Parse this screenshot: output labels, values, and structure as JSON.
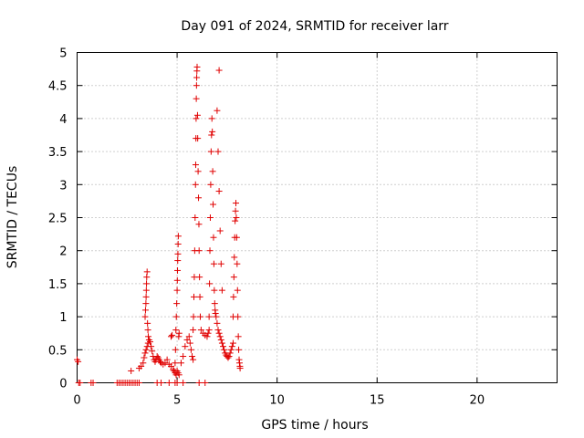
{
  "chart_data": {
    "type": "scatter",
    "title": "Day 091 of 2024, SRMTID for receiver larr",
    "xlabel": "GPS time / hours",
    "ylabel": "SRMTID / TECUs",
    "xlim": [
      0,
      24
    ],
    "ylim": [
      0,
      5
    ],
    "xticks": [
      0,
      5,
      10,
      15,
      20
    ],
    "xtick_labels": [
      "0",
      "5",
      "10",
      "15",
      "20"
    ],
    "yticks": [
      0,
      0.5,
      1,
      1.5,
      2,
      2.5,
      3,
      3.5,
      4,
      4.5,
      5
    ],
    "ytick_labels": [
      "0",
      "0.5",
      "1",
      "1.5",
      "2",
      "2.5",
      "3",
      "3.5",
      "4",
      "4.5",
      "5"
    ],
    "grid": true,
    "marker": "+",
    "color": "#e00000",
    "series": [
      {
        "name": "SRMTID",
        "points": [
          [
            0.0,
            0.35
          ],
          [
            0.05,
            0.32
          ],
          [
            0.08,
            0.0
          ],
          [
            0.15,
            0.0
          ],
          [
            0.7,
            0.0
          ],
          [
            0.8,
            0.0
          ],
          [
            2.0,
            0.0
          ],
          [
            2.1,
            0.0
          ],
          [
            2.2,
            0.0
          ],
          [
            2.3,
            0.0
          ],
          [
            2.4,
            0.0
          ],
          [
            2.5,
            0.0
          ],
          [
            2.6,
            0.0
          ],
          [
            2.7,
            0.0
          ],
          [
            2.8,
            0.0
          ],
          [
            2.9,
            0.0
          ],
          [
            3.0,
            0.0
          ],
          [
            3.1,
            0.0
          ],
          [
            4.0,
            0.0
          ],
          [
            4.2,
            0.0
          ],
          [
            4.6,
            0.0
          ],
          [
            4.9,
            0.0
          ],
          [
            5.0,
            0.0
          ],
          [
            5.3,
            0.0
          ],
          [
            6.1,
            0.0
          ],
          [
            6.4,
            0.0
          ],
          [
            2.7,
            0.18
          ],
          [
            3.1,
            0.22
          ],
          [
            3.2,
            0.25
          ],
          [
            3.3,
            0.3
          ],
          [
            3.35,
            0.38
          ],
          [
            3.4,
            0.45
          ],
          [
            3.45,
            0.5
          ],
          [
            3.5,
            0.55
          ],
          [
            3.55,
            0.6
          ],
          [
            3.6,
            0.65
          ],
          [
            3.65,
            0.62
          ],
          [
            3.7,
            0.55
          ],
          [
            3.75,
            0.48
          ],
          [
            3.8,
            0.4
          ],
          [
            3.85,
            0.35
          ],
          [
            3.9,
            0.32
          ],
          [
            3.95,
            0.35
          ],
          [
            4.0,
            0.4
          ],
          [
            4.05,
            0.38
          ],
          [
            4.1,
            0.35
          ],
          [
            4.15,
            0.32
          ],
          [
            4.2,
            0.3
          ],
          [
            4.3,
            0.28
          ],
          [
            4.4,
            0.3
          ],
          [
            4.5,
            0.35
          ],
          [
            4.6,
            0.28
          ],
          [
            4.7,
            0.25
          ],
          [
            4.8,
            0.2
          ],
          [
            4.85,
            0.18
          ],
          [
            4.9,
            0.15
          ],
          [
            4.95,
            0.12
          ],
          [
            5.0,
            0.18
          ],
          [
            5.05,
            0.15
          ],
          [
            5.1,
            0.12
          ],
          [
            3.4,
            1.0
          ],
          [
            3.42,
            1.1
          ],
          [
            3.44,
            1.2
          ],
          [
            3.45,
            1.3
          ],
          [
            3.46,
            1.4
          ],
          [
            3.47,
            1.5
          ],
          [
            3.48,
            1.6
          ],
          [
            3.5,
            1.68
          ],
          [
            3.52,
            0.9
          ],
          [
            3.54,
            0.8
          ],
          [
            3.56,
            0.7
          ],
          [
            4.7,
            0.7
          ],
          [
            4.75,
            0.72
          ],
          [
            4.9,
            0.3
          ],
          [
            4.92,
            0.5
          ],
          [
            4.94,
            0.8
          ],
          [
            4.96,
            1.0
          ],
          [
            4.98,
            1.2
          ],
          [
            5.0,
            1.4
          ],
          [
            5.01,
            1.55
          ],
          [
            5.02,
            1.7
          ],
          [
            5.03,
            1.85
          ],
          [
            5.04,
            1.95
          ],
          [
            5.05,
            2.1
          ],
          [
            5.06,
            2.22
          ],
          [
            5.08,
            0.7
          ],
          [
            5.1,
            0.75
          ],
          [
            5.2,
            0.3
          ],
          [
            5.3,
            0.4
          ],
          [
            5.4,
            0.55
          ],
          [
            5.5,
            0.65
          ],
          [
            5.6,
            0.7
          ],
          [
            5.65,
            0.6
          ],
          [
            5.7,
            0.5
          ],
          [
            5.75,
            0.4
          ],
          [
            5.8,
            0.35
          ],
          [
            5.8,
            0.8
          ],
          [
            5.82,
            1.0
          ],
          [
            5.84,
            1.3
          ],
          [
            5.86,
            1.6
          ],
          [
            5.88,
            2.0
          ],
          [
            5.9,
            2.5
          ],
          [
            5.92,
            3.0
          ],
          [
            5.93,
            3.3
          ],
          [
            5.94,
            3.7
          ],
          [
            5.95,
            4.0
          ],
          [
            5.96,
            4.3
          ],
          [
            5.97,
            4.5
          ],
          [
            5.98,
            4.62
          ],
          [
            5.99,
            4.72
          ],
          [
            6.0,
            4.78
          ],
          [
            6.02,
            4.05
          ],
          [
            6.03,
            3.7
          ],
          [
            6.05,
            3.2
          ],
          [
            6.07,
            2.8
          ],
          [
            6.09,
            2.4
          ],
          [
            6.1,
            2.0
          ],
          [
            6.12,
            1.6
          ],
          [
            6.14,
            1.3
          ],
          [
            6.16,
            1.0
          ],
          [
            6.2,
            0.8
          ],
          [
            6.3,
            0.75
          ],
          [
            6.4,
            0.72
          ],
          [
            6.5,
            0.7
          ],
          [
            6.55,
            0.75
          ],
          [
            6.6,
            0.8
          ],
          [
            6.6,
            1.0
          ],
          [
            6.62,
            1.5
          ],
          [
            6.64,
            2.0
          ],
          [
            6.66,
            2.5
          ],
          [
            6.68,
            3.0
          ],
          [
            6.7,
            3.5
          ],
          [
            6.72,
            3.75
          ],
          [
            6.74,
            4.0
          ],
          [
            6.76,
            3.8
          ],
          [
            6.78,
            3.2
          ],
          [
            6.8,
            2.7
          ],
          [
            6.82,
            2.2
          ],
          [
            6.84,
            1.8
          ],
          [
            6.86,
            1.4
          ],
          [
            6.88,
            1.2
          ],
          [
            6.9,
            1.1
          ],
          [
            6.92,
            1.05
          ],
          [
            6.95,
            1.0
          ],
          [
            7.0,
            0.9
          ],
          [
            7.05,
            0.8
          ],
          [
            7.1,
            0.75
          ],
          [
            7.15,
            0.7
          ],
          [
            7.2,
            0.65
          ],
          [
            7.25,
            0.6
          ],
          [
            7.0,
            4.12
          ],
          [
            7.05,
            3.5
          ],
          [
            7.1,
            2.9
          ],
          [
            7.15,
            2.3
          ],
          [
            7.2,
            1.8
          ],
          [
            7.25,
            1.4
          ],
          [
            7.1,
            4.73
          ],
          [
            7.3,
            0.55
          ],
          [
            7.35,
            0.5
          ],
          [
            7.4,
            0.45
          ],
          [
            7.45,
            0.42
          ],
          [
            7.5,
            0.4
          ],
          [
            7.55,
            0.38
          ],
          [
            7.6,
            0.4
          ],
          [
            7.65,
            0.45
          ],
          [
            7.7,
            0.5
          ],
          [
            7.75,
            0.55
          ],
          [
            7.8,
            0.6
          ],
          [
            7.8,
            1.0
          ],
          [
            7.82,
            1.3
          ],
          [
            7.84,
            1.6
          ],
          [
            7.86,
            1.9
          ],
          [
            7.88,
            2.2
          ],
          [
            7.9,
            2.45
          ],
          [
            7.92,
            2.6
          ],
          [
            7.94,
            2.72
          ],
          [
            7.96,
            2.5
          ],
          [
            7.98,
            2.2
          ],
          [
            8.0,
            1.8
          ],
          [
            8.02,
            1.4
          ],
          [
            8.04,
            1.0
          ],
          [
            8.06,
            0.7
          ],
          [
            8.08,
            0.5
          ],
          [
            8.1,
            0.35
          ],
          [
            8.12,
            0.3
          ],
          [
            8.14,
            0.25
          ],
          [
            8.15,
            0.22
          ]
        ]
      }
    ]
  }
}
